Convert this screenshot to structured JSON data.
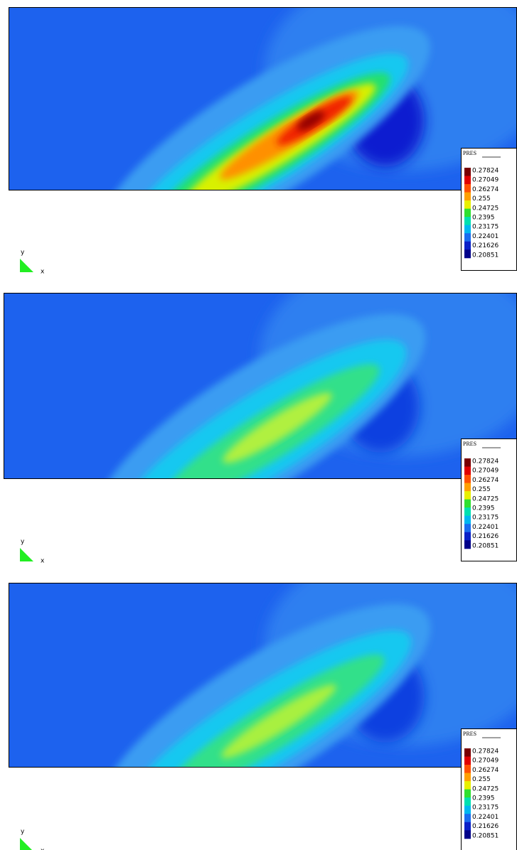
{
  "panels": [
    {
      "legend": {
        "title": "PRES",
        "labels": [
          "0.27824",
          "0.27049",
          "0.26274",
          "0.255",
          "0.24725",
          "0.2395",
          "0.23175",
          "0.22401",
          "0.21626",
          "0.20851"
        ]
      },
      "axes": {
        "y": "y",
        "x": "x"
      }
    },
    {
      "legend": {
        "title": "PRES",
        "labels": [
          "0.27824",
          "0.27049",
          "0.26274",
          "0.255",
          "0.24725",
          "0.2395",
          "0.23175",
          "0.22401",
          "0.21626",
          "0.20851"
        ]
      },
      "axes": {
        "y": "y",
        "x": "x"
      }
    },
    {
      "legend": {
        "title": "PRES",
        "labels": [
          "0.27824",
          "0.27049",
          "0.26274",
          "0.255",
          "0.24725",
          "0.2395",
          "0.23175",
          "0.22401",
          "0.21626",
          "0.20851"
        ]
      },
      "axes": {
        "y": "y",
        "x": "x"
      }
    }
  ]
}
